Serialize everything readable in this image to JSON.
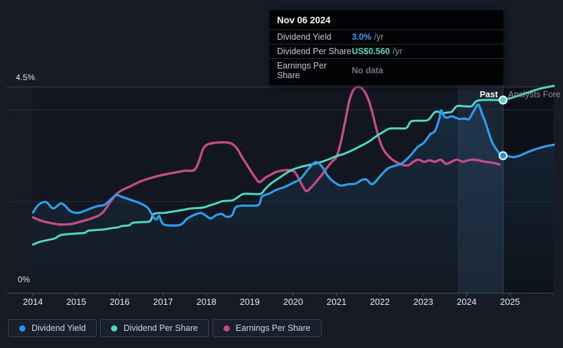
{
  "colors": {
    "background": "#161b25",
    "plot_bg": "#12171f",
    "grid": "#273040",
    "grid_bright": "#3c4555",
    "axis": "#4a5260",
    "tick_label": "#e9ecf0",
    "y_label": "#dfe3e9",
    "band": "rgba(110,165,225,0.10)",
    "band_edge": "rgba(140,175,225,0.10)",
    "forecast_shade": "rgba(0,0,0,0.25)",
    "fill_top": "rgba(56,130,200,0.20)",
    "fill_bottom": "rgba(56,130,200,0.02)",
    "divider": "rgba(140,175,225,0.30)",
    "yield_line": "#2b9ff0",
    "yield_dot_fill": "#2196f3",
    "dps_line": "#4fd9c2",
    "eps_line": "#c64b89",
    "dot_ring": "#ffffff",
    "tooltip_bg": "#020305",
    "tooltip_muted": "#70777f",
    "tooltip_suffix": "#8d939b",
    "past_label": "#ffffff",
    "forecast_label": "#8a919b"
  },
  "labels": {
    "past": "Past",
    "forecast": "Analysts Fore",
    "y_top": "4.5%",
    "y_bottom": "0%"
  },
  "tooltip": {
    "title": "Nov 06 2024",
    "rows": [
      {
        "label": "Dividend Yield",
        "value": "3.0%",
        "suffix": "/yr"
      },
      {
        "label": "Dividend Per Share",
        "value": "US$0.560",
        "suffix": "/yr"
      },
      {
        "label": "Earnings Per Share",
        "value": "No data",
        "suffix": ""
      }
    ]
  },
  "legend": [
    {
      "label": "Dividend Yield",
      "color": "#2196f3"
    },
    {
      "label": "Dividend Per Share",
      "color": "#4fd9c2"
    },
    {
      "label": "Earnings Per Share",
      "color": "#c64b89"
    }
  ],
  "chart_data": {
    "type": "line",
    "x_ticks": [
      "2014",
      "2015",
      "2016",
      "2017",
      "2018",
      "2019",
      "2020",
      "2021",
      "2022",
      "2023",
      "2024",
      "2025"
    ],
    "x_range": [
      2014,
      2026.01
    ],
    "y_axis_percent": {
      "min": 0,
      "max": 4.5,
      "gridline_values": [
        4.5,
        4.0,
        2.0,
        0
      ],
      "visible_labels": [
        "4.5%",
        "0%"
      ]
    },
    "y_axis_usd": {
      "usd_at_divider_dot": 0.56,
      "note": "Dividend/Earnings per share share the pixel scale: US$0.598 aligns with 4.5% gridline"
    },
    "past_forecast_divider_year": 2024.84,
    "highlight_band_start_year": 2023.8,
    "markers": [
      {
        "series": "Dividend Yield",
        "year": 2024.84,
        "value": 3.0,
        "display": "3.0% /yr"
      },
      {
        "series": "Dividend Per Share",
        "year": 2024.84,
        "value": 0.56,
        "display": "US$0.560 /yr"
      }
    ],
    "series": [
      {
        "id": "dividend_yield",
        "name": "Dividend Yield",
        "unit": "percent",
        "color": "#2b9ff0",
        "points": [
          [
            2014.0,
            1.76
          ],
          [
            2014.13,
            1.93
          ],
          [
            2014.3,
            1.99
          ],
          [
            2014.47,
            1.85
          ],
          [
            2014.66,
            1.96
          ],
          [
            2014.87,
            1.79
          ],
          [
            2015.03,
            1.75
          ],
          [
            2015.17,
            1.79
          ],
          [
            2015.33,
            1.85
          ],
          [
            2015.49,
            1.9
          ],
          [
            2015.65,
            1.93
          ],
          [
            2015.8,
            2.05
          ],
          [
            2015.93,
            2.14
          ],
          [
            2016.09,
            2.09
          ],
          [
            2016.28,
            2.03
          ],
          [
            2016.45,
            1.97
          ],
          [
            2016.64,
            1.87
          ],
          [
            2016.78,
            1.66
          ],
          [
            2016.85,
            1.61
          ],
          [
            2016.91,
            1.69
          ],
          [
            2016.96,
            1.57
          ],
          [
            2017.05,
            1.49
          ],
          [
            2017.39,
            1.49
          ],
          [
            2017.56,
            1.63
          ],
          [
            2017.75,
            1.72
          ],
          [
            2017.88,
            1.75
          ],
          [
            2017.99,
            1.69
          ],
          [
            2018.1,
            1.63
          ],
          [
            2018.22,
            1.7
          ],
          [
            2018.35,
            1.73
          ],
          [
            2018.46,
            1.67
          ],
          [
            2018.59,
            1.7
          ],
          [
            2018.67,
            1.87
          ],
          [
            2018.81,
            1.91
          ],
          [
            2019.02,
            1.91
          ],
          [
            2019.21,
            1.93
          ],
          [
            2019.28,
            2.11
          ],
          [
            2019.44,
            2.17
          ],
          [
            2019.62,
            2.26
          ],
          [
            2019.81,
            2.32
          ],
          [
            2020.0,
            2.41
          ],
          [
            2020.17,
            2.5
          ],
          [
            2020.36,
            2.72
          ],
          [
            2020.52,
            2.86
          ],
          [
            2020.66,
            2.77
          ],
          [
            2020.79,
            2.57
          ],
          [
            2020.95,
            2.42
          ],
          [
            2021.1,
            2.35
          ],
          [
            2021.28,
            2.38
          ],
          [
            2021.44,
            2.39
          ],
          [
            2021.58,
            2.47
          ],
          [
            2021.69,
            2.48
          ],
          [
            2021.83,
            2.38
          ],
          [
            2022.02,
            2.57
          ],
          [
            2022.18,
            2.72
          ],
          [
            2022.34,
            2.78
          ],
          [
            2022.5,
            2.83
          ],
          [
            2022.69,
            2.99
          ],
          [
            2022.86,
            3.18
          ],
          [
            2023.02,
            3.29
          ],
          [
            2023.16,
            3.47
          ],
          [
            2023.27,
            3.54
          ],
          [
            2023.37,
            3.81
          ],
          [
            2023.41,
            3.99
          ],
          [
            2023.48,
            3.86
          ],
          [
            2023.56,
            3.83
          ],
          [
            2023.65,
            3.86
          ],
          [
            2023.75,
            3.83
          ],
          [
            2023.84,
            3.8
          ],
          [
            2023.95,
            3.81
          ],
          [
            2024.05,
            3.8
          ],
          [
            2024.13,
            3.92
          ],
          [
            2024.22,
            4.07
          ],
          [
            2024.28,
            4.11
          ],
          [
            2024.36,
            3.9
          ],
          [
            2024.44,
            3.71
          ],
          [
            2024.52,
            3.47
          ],
          [
            2024.6,
            3.27
          ],
          [
            2024.7,
            3.12
          ],
          [
            2024.78,
            3.03
          ],
          [
            2024.84,
            3.0
          ]
        ],
        "forecast_points": [
          [
            2024.84,
            3.0
          ],
          [
            2024.95,
            2.99
          ],
          [
            2025.08,
            2.97
          ],
          [
            2025.22,
            3.0
          ],
          [
            2025.36,
            3.06
          ],
          [
            2025.52,
            3.12
          ],
          [
            2025.68,
            3.17
          ],
          [
            2025.84,
            3.21
          ],
          [
            2026.01,
            3.24
          ]
        ]
      },
      {
        "id": "dividend_per_share",
        "name": "Dividend Per Share",
        "unit": "usd",
        "color": "#4fd9c2",
        "points": [
          [
            2014.0,
            0.141
          ],
          [
            2014.19,
            0.15
          ],
          [
            2014.38,
            0.155
          ],
          [
            2014.51,
            0.159
          ],
          [
            2014.63,
            0.168
          ],
          [
            2014.82,
            0.171
          ],
          [
            2015.01,
            0.173
          ],
          [
            2015.2,
            0.175
          ],
          [
            2015.27,
            0.181
          ],
          [
            2015.46,
            0.183
          ],
          [
            2015.65,
            0.185
          ],
          [
            2015.84,
            0.189
          ],
          [
            2015.97,
            0.191
          ],
          [
            2016.06,
            0.195
          ],
          [
            2016.22,
            0.197
          ],
          [
            2016.3,
            0.204
          ],
          [
            2016.48,
            0.206
          ],
          [
            2016.7,
            0.209
          ],
          [
            2016.79,
            0.23
          ],
          [
            2017.04,
            0.233
          ],
          [
            2017.24,
            0.237
          ],
          [
            2017.48,
            0.242
          ],
          [
            2017.67,
            0.246
          ],
          [
            2017.91,
            0.248
          ],
          [
            2018.07,
            0.254
          ],
          [
            2018.22,
            0.26
          ],
          [
            2018.38,
            0.267
          ],
          [
            2018.62,
            0.27
          ],
          [
            2018.83,
            0.287
          ],
          [
            2019.02,
            0.288
          ],
          [
            2019.25,
            0.288
          ],
          [
            2019.34,
            0.3
          ],
          [
            2019.49,
            0.318
          ],
          [
            2019.7,
            0.336
          ],
          [
            2019.89,
            0.352
          ],
          [
            2020.0,
            0.359
          ],
          [
            2020.2,
            0.367
          ],
          [
            2020.41,
            0.373
          ],
          [
            2020.61,
            0.379
          ],
          [
            2020.84,
            0.389
          ],
          [
            2020.99,
            0.397
          ],
          [
            2021.15,
            0.403
          ],
          [
            2021.34,
            0.413
          ],
          [
            2021.53,
            0.425
          ],
          [
            2021.74,
            0.439
          ],
          [
            2021.94,
            0.457
          ],
          [
            2022.1,
            0.469
          ],
          [
            2022.21,
            0.477
          ],
          [
            2022.42,
            0.478
          ],
          [
            2022.61,
            0.479
          ],
          [
            2022.72,
            0.498
          ],
          [
            2022.92,
            0.5
          ],
          [
            2023.11,
            0.502
          ],
          [
            2023.25,
            0.523
          ],
          [
            2023.33,
            0.526
          ],
          [
            2023.44,
            0.522
          ],
          [
            2023.56,
            0.524
          ],
          [
            2023.66,
            0.526
          ],
          [
            2023.77,
            0.542
          ],
          [
            2023.94,
            0.542
          ],
          [
            2024.11,
            0.542
          ],
          [
            2024.23,
            0.557
          ],
          [
            2024.41,
            0.56
          ],
          [
            2024.63,
            0.56
          ],
          [
            2024.84,
            0.56
          ]
        ],
        "forecast_points": [
          [
            2024.84,
            0.56
          ],
          [
            2025.03,
            0.566
          ],
          [
            2025.22,
            0.574
          ],
          [
            2025.42,
            0.582
          ],
          [
            2025.61,
            0.59
          ],
          [
            2025.8,
            0.596
          ],
          [
            2026.01,
            0.601
          ]
        ]
      },
      {
        "id": "earnings_per_share",
        "name": "Earnings Per Share",
        "unit": "usd",
        "color": "#c64b89",
        "points": [
          [
            2014.0,
            0.22
          ],
          [
            2014.19,
            0.21
          ],
          [
            2014.43,
            0.203
          ],
          [
            2014.66,
            0.199
          ],
          [
            2014.9,
            0.201
          ],
          [
            2015.14,
            0.209
          ],
          [
            2015.38,
            0.218
          ],
          [
            2015.61,
            0.234
          ],
          [
            2015.93,
            0.288
          ],
          [
            2016.25,
            0.31
          ],
          [
            2016.48,
            0.324
          ],
          [
            2016.72,
            0.334
          ],
          [
            2016.96,
            0.342
          ],
          [
            2017.24,
            0.349
          ],
          [
            2017.51,
            0.355
          ],
          [
            2017.72,
            0.357
          ],
          [
            2017.83,
            0.383
          ],
          [
            2017.92,
            0.417
          ],
          [
            2018.02,
            0.431
          ],
          [
            2018.15,
            0.435
          ],
          [
            2018.3,
            0.437
          ],
          [
            2018.46,
            0.437
          ],
          [
            2018.59,
            0.433
          ],
          [
            2018.72,
            0.417
          ],
          [
            2018.81,
            0.397
          ],
          [
            2018.91,
            0.377
          ],
          [
            2019.0,
            0.359
          ],
          [
            2019.11,
            0.338
          ],
          [
            2019.22,
            0.322
          ],
          [
            2019.35,
            0.334
          ],
          [
            2019.46,
            0.342
          ],
          [
            2019.6,
            0.351
          ],
          [
            2019.73,
            0.355
          ],
          [
            2019.85,
            0.357
          ],
          [
            2019.97,
            0.355
          ],
          [
            2020.04,
            0.351
          ],
          [
            2020.14,
            0.33
          ],
          [
            2020.22,
            0.31
          ],
          [
            2020.31,
            0.296
          ],
          [
            2020.44,
            0.31
          ],
          [
            2020.55,
            0.326
          ],
          [
            2020.68,
            0.346
          ],
          [
            2020.8,
            0.367
          ],
          [
            2020.91,
            0.383
          ],
          [
            2020.99,
            0.393
          ],
          [
            2021.07,
            0.423
          ],
          [
            2021.15,
            0.467
          ],
          [
            2021.23,
            0.518
          ],
          [
            2021.29,
            0.556
          ],
          [
            2021.36,
            0.582
          ],
          [
            2021.42,
            0.594
          ],
          [
            2021.48,
            0.598
          ],
          [
            2021.56,
            0.596
          ],
          [
            2021.64,
            0.586
          ],
          [
            2021.72,
            0.566
          ],
          [
            2021.8,
            0.536
          ],
          [
            2021.88,
            0.496
          ],
          [
            2021.96,
            0.457
          ],
          [
            2022.04,
            0.427
          ],
          [
            2022.12,
            0.409
          ],
          [
            2022.2,
            0.397
          ],
          [
            2022.29,
            0.387
          ],
          [
            2022.39,
            0.379
          ],
          [
            2022.47,
            0.375
          ],
          [
            2022.54,
            0.371
          ],
          [
            2022.66,
            0.371
          ],
          [
            2022.77,
            0.381
          ],
          [
            2022.89,
            0.387
          ],
          [
            2023.02,
            0.381
          ],
          [
            2023.15,
            0.385
          ],
          [
            2023.27,
            0.381
          ],
          [
            2023.4,
            0.387
          ],
          [
            2023.53,
            0.375
          ],
          [
            2023.65,
            0.381
          ],
          [
            2023.78,
            0.387
          ],
          [
            2023.91,
            0.381
          ],
          [
            2024.03,
            0.385
          ],
          [
            2024.16,
            0.387
          ],
          [
            2024.28,
            0.385
          ],
          [
            2024.41,
            0.381
          ],
          [
            2024.54,
            0.379
          ],
          [
            2024.65,
            0.377
          ],
          [
            2024.76,
            0.373
          ]
        ]
      }
    ]
  }
}
